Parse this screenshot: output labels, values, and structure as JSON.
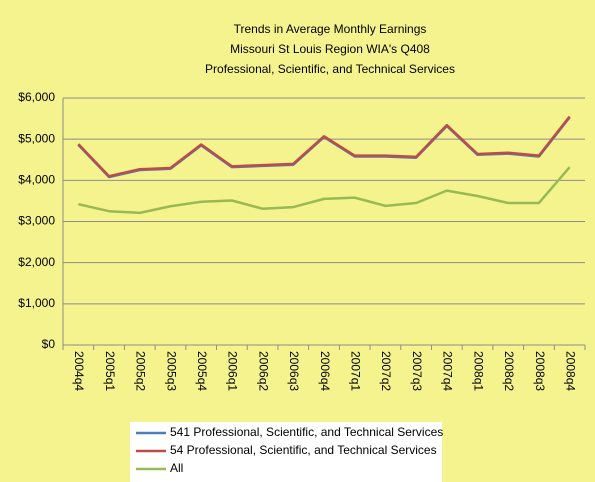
{
  "chart_data": {
    "type": "line",
    "title": [
      "Trends in Average Monthly Earnings",
      "Missouri St Louis Region WIA's Q408",
      "Professional, Scientific, and Technical Services"
    ],
    "categories": [
      "2004q4",
      "2005q1",
      "2005q2",
      "2005q3",
      "2005q4",
      "2006q1",
      "2006q2",
      "2006q3",
      "2006q4",
      "2007q1",
      "2007q2",
      "2007q3",
      "2007q4",
      "2008q1",
      "2008q2",
      "2008q3",
      "2008q4"
    ],
    "series": [
      {
        "name": "541 Professional, Scientific, and Technical Services",
        "color": "#4a7ebb",
        "values": [
          4860,
          4080,
          4250,
          4280,
          4850,
          4320,
          4350,
          4380,
          5050,
          4580,
          4580,
          4550,
          5320,
          4620,
          4650,
          4580,
          5530
        ]
      },
      {
        "name": "54 Professional, Scientific, and Technical Services",
        "color": "#be4b48",
        "values": [
          4880,
          4100,
          4270,
          4300,
          4870,
          4340,
          4370,
          4400,
          5070,
          4600,
          4600,
          4570,
          5340,
          4640,
          4670,
          4600,
          5550
        ]
      },
      {
        "name": "All",
        "color": "#98b954",
        "values": [
          3420,
          3250,
          3210,
          3370,
          3480,
          3510,
          3310,
          3350,
          3550,
          3580,
          3380,
          3450,
          3750,
          3620,
          3450,
          3450,
          4320
        ]
      }
    ],
    "ylim": [
      0,
      6000
    ],
    "yticks": [
      {
        "value": 0,
        "label": "$0"
      },
      {
        "value": 1000,
        "label": "$1,000"
      },
      {
        "value": 2000,
        "label": "$2,000"
      },
      {
        "value": 3000,
        "label": "$3,000"
      },
      {
        "value": 4000,
        "label": "$4,000"
      },
      {
        "value": 5000,
        "label": "$5,000"
      },
      {
        "value": 6000,
        "label": "$6,000"
      }
    ],
    "grid": true
  }
}
